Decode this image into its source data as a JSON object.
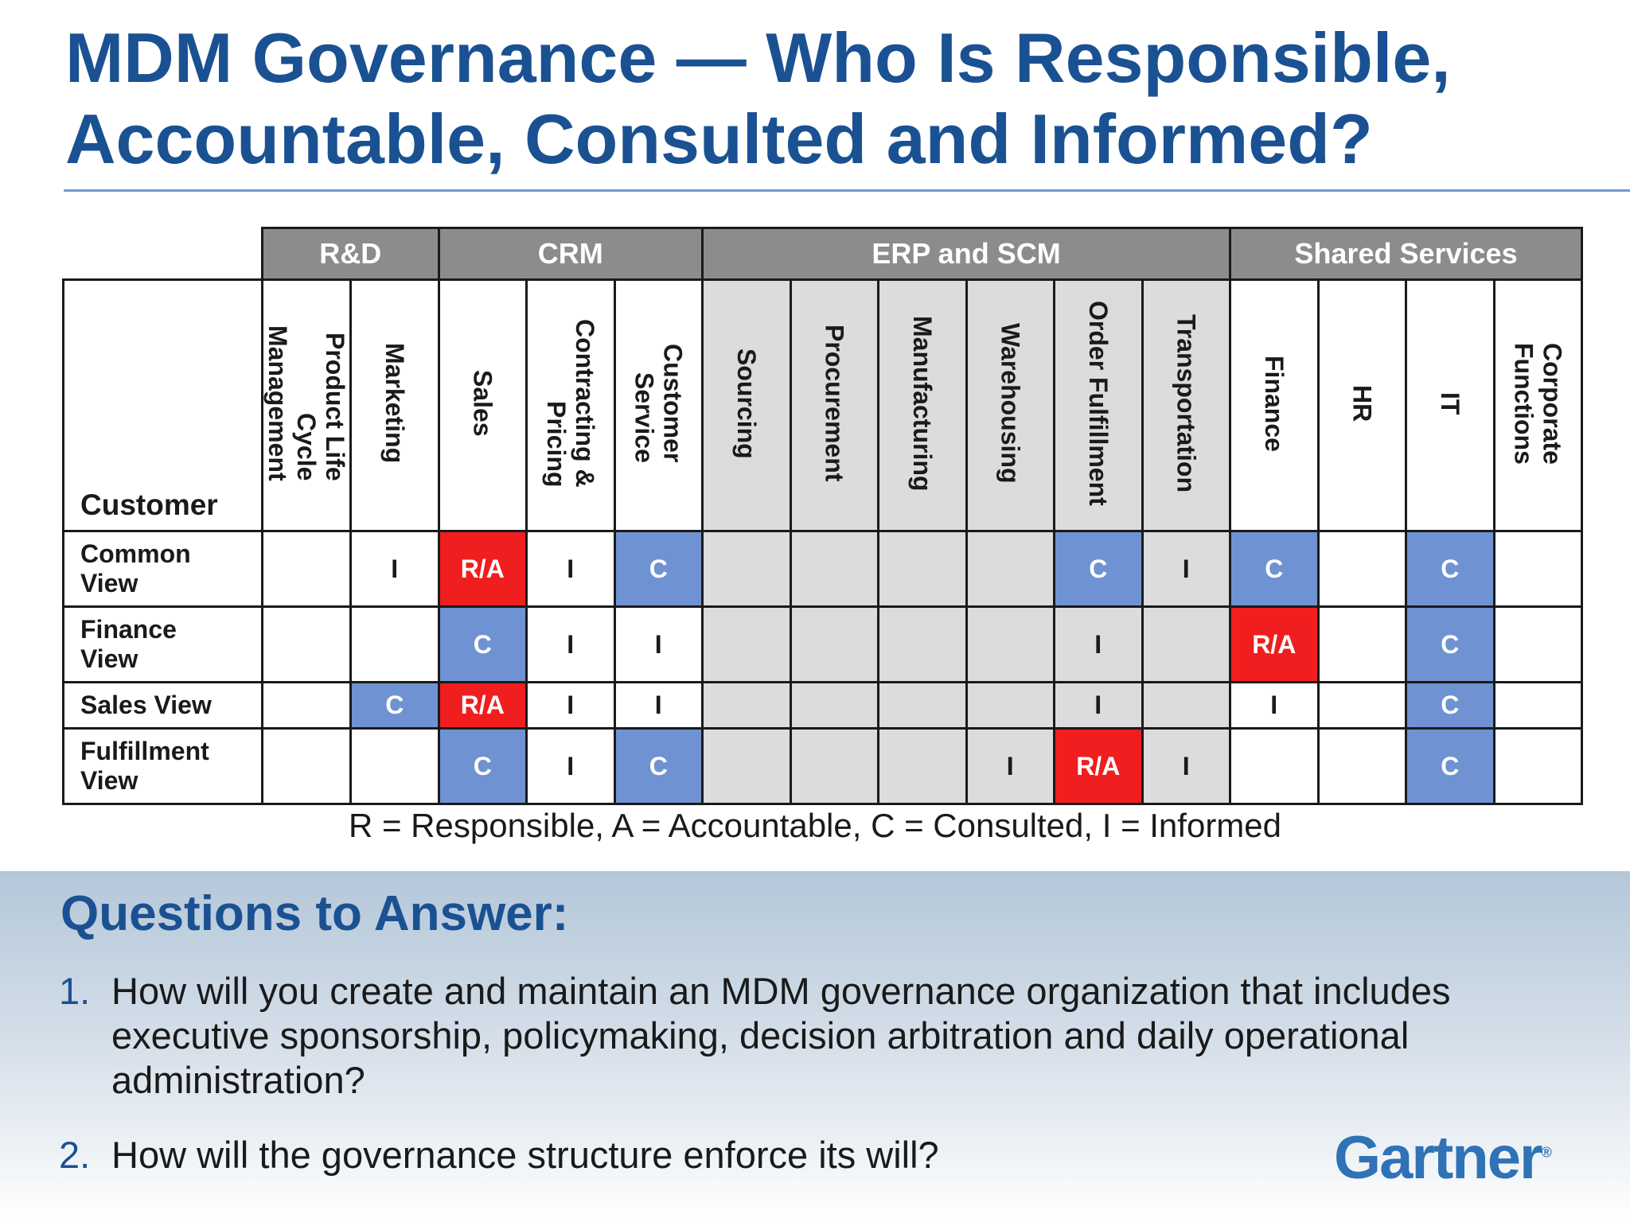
{
  "title_line1": "MDM Governance — Who Is Responsible,",
  "title_line2": "Accountable, Consulted and Informed?",
  "groups": [
    {
      "label": "R&D",
      "span": 2,
      "shaded": false
    },
    {
      "label": "CRM",
      "span": 3,
      "shaded": false
    },
    {
      "label": "ERP and SCM",
      "span": 6,
      "shaded": true
    },
    {
      "label": "Shared Services",
      "span": 4,
      "shaded": false
    }
  ],
  "corner_label": "Customer",
  "columns": [
    "Product Life\nCycle\nManagement",
    "Marketing",
    "Sales",
    "Contracting &\nPricing",
    "Customer\nService",
    "Sourcing",
    "Procurement",
    "Manufacturing",
    "Warehousing",
    "Order Fulfillment",
    "Transportation",
    "Finance",
    "HR",
    "IT",
    "Corporate\nFunctions"
  ],
  "rows": [
    {
      "label": "Common\nView",
      "cells": [
        "",
        "I",
        "R/A",
        "I",
        "C",
        "",
        "",
        "",
        "",
        "C",
        "I",
        "C",
        "",
        "C",
        ""
      ]
    },
    {
      "label": "Finance\nView",
      "cells": [
        "",
        "",
        "C",
        "I",
        "I",
        "",
        "",
        "",
        "",
        "I",
        "",
        "R/A",
        "",
        "C",
        ""
      ]
    },
    {
      "label": "Sales View",
      "cells": [
        "",
        "C",
        "R/A",
        "I",
        "I",
        "",
        "",
        "",
        "",
        "I",
        "",
        "I",
        "",
        "C",
        ""
      ]
    },
    {
      "label": "Fulfillment\nView",
      "cells": [
        "",
        "",
        "C",
        "I",
        "C",
        "",
        "",
        "",
        "I",
        "R/A",
        "I",
        "",
        "",
        "C",
        ""
      ]
    }
  ],
  "legend": "R = Responsible, A = Accountable, C = Consulted, I = Informed",
  "questions_title": "Questions to Answer:",
  "questions": [
    {
      "num": "1.",
      "text": "How will you create and maintain an MDM governance organization that includes executive sponsorship, policymaking, decision arbitration and daily operational administration?"
    },
    {
      "num": "2.",
      "text": "How will the governance structure enforce its will?"
    }
  ],
  "brand": "Gartner",
  "brand_mark": "®",
  "colors": {
    "title_blue": "#1a5192",
    "responsible_red": "#f01e1e",
    "consulted_blue": "#6f93d2",
    "header_gray": "#8c8c8c",
    "erp_shade": "#dcdcdc",
    "brand_blue": "#2f72b5"
  }
}
